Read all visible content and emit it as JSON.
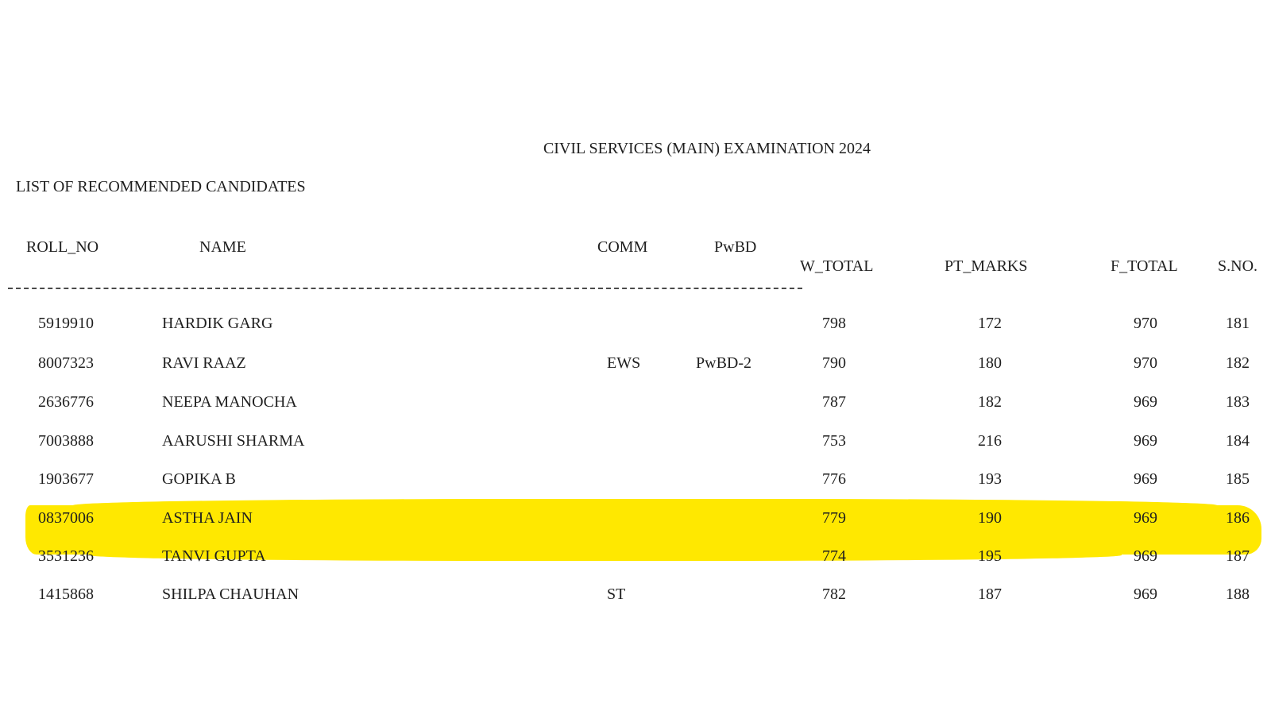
{
  "document": {
    "title": "CIVIL SERVICES (MAIN) EXAMINATION 2024",
    "list_title": "LIST OF RECOMMENDED CANDIDATES"
  },
  "table": {
    "headers": {
      "roll_no": "ROLL_NO",
      "name": "NAME",
      "comm": "COMM",
      "pwbd": "PwBD",
      "w_total": "W_TOTAL",
      "pt_marks": "PT_MARKS",
      "f_total": "F_TOTAL",
      "s_no": "S.NO."
    },
    "rows": [
      {
        "roll_no": "5919910",
        "name": "HARDIK GARG",
        "comm": "",
        "pwbd": "",
        "w_total": "798",
        "pt_marks": "172",
        "f_total": "970",
        "s_no": "181"
      },
      {
        "roll_no": "8007323",
        "name": "RAVI RAAZ",
        "comm": "EWS",
        "pwbd": "PwBD-2",
        "w_total": "790",
        "pt_marks": "180",
        "f_total": "970",
        "s_no": "182"
      },
      {
        "roll_no": "2636776",
        "name": "NEEPA MANOCHA",
        "comm": "",
        "pwbd": "",
        "w_total": "787",
        "pt_marks": "182",
        "f_total": "969",
        "s_no": "183"
      },
      {
        "roll_no": "7003888",
        "name": "AARUSHI SHARMA",
        "comm": "",
        "pwbd": "",
        "w_total": "753",
        "pt_marks": "216",
        "f_total": "969",
        "s_no": "184"
      },
      {
        "roll_no": "1903677",
        "name": "GOPIKA B",
        "comm": "",
        "pwbd": "",
        "w_total": "776",
        "pt_marks": "193",
        "f_total": "969",
        "s_no": "185"
      },
      {
        "roll_no": "0837006",
        "name": "ASTHA JAIN",
        "comm": "",
        "pwbd": "",
        "w_total": "779",
        "pt_marks": "190",
        "f_total": "969",
        "s_no": "186"
      },
      {
        "roll_no": "3531236",
        "name": "TANVI GUPTA",
        "comm": "",
        "pwbd": "",
        "w_total": "774",
        "pt_marks": "195",
        "f_total": "969",
        "s_no": "187"
      },
      {
        "roll_no": "1415868",
        "name": "SHILPA CHAUHAN",
        "comm": "ST",
        "pwbd": "",
        "w_total": "782",
        "pt_marks": "187",
        "f_total": "969",
        "s_no": "188"
      }
    ],
    "highlighted_row_index": 5
  },
  "colors": {
    "highlight": "#ffe800",
    "text": "#1f1f1f",
    "background": "#ffffff"
  }
}
